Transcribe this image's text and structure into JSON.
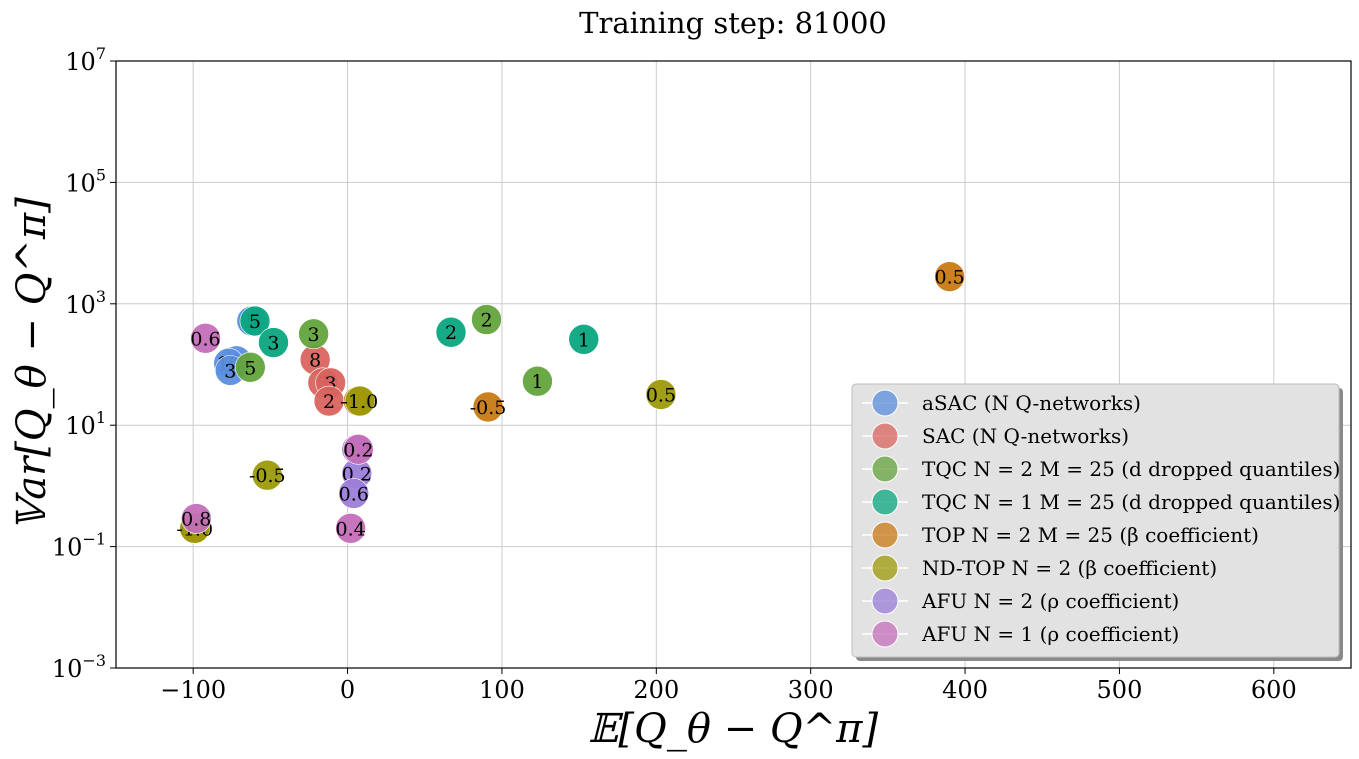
{
  "chart_data": {
    "type": "scatter",
    "title": "Training step: 81000",
    "xlabel": "𝔼[Q_θ − Q^π]",
    "ylabel": "𝕍ar[Q_θ − Q^π]",
    "xscale": "linear",
    "yscale": "log",
    "xlim": [
      -150,
      650
    ],
    "ylim": [
      0.001,
      10000000
    ],
    "xticks": [
      -100,
      0,
      100,
      200,
      300,
      400,
      500,
      600
    ],
    "xtick_labels": [
      "−100",
      "0",
      "100",
      "200",
      "300",
      "400",
      "500",
      "600"
    ],
    "yticks": [
      0.001,
      0.1,
      10,
      1000,
      100000,
      10000000
    ],
    "ytick_labels": [
      {
        "base": "10",
        "exp": "−3"
      },
      {
        "base": "10",
        "exp": "−1"
      },
      {
        "base": "10",
        "exp": "1"
      },
      {
        "base": "10",
        "exp": "3"
      },
      {
        "base": "10",
        "exp": "5"
      },
      {
        "base": "10",
        "exp": "7"
      }
    ],
    "grid": true,
    "legend_position": "lower-right",
    "series": [
      {
        "name": "aSAC (N Q-networks)",
        "color": "#5b8ede",
        "points": [
          {
            "x": -72,
            "y": 115,
            "label": "1"
          },
          {
            "x": -77,
            "y": 105,
            "label": "10"
          },
          {
            "x": -76,
            "y": 80,
            "label": "3"
          },
          {
            "x": -62,
            "y": 520,
            "label": "5"
          }
        ]
      },
      {
        "name": "SAC (N Q-networks)",
        "color": "#d9645f",
        "points": [
          {
            "x": -21,
            "y": 120,
            "label": "8"
          },
          {
            "x": -16,
            "y": 50,
            "label": "5"
          },
          {
            "x": -11,
            "y": 50,
            "label": "3"
          },
          {
            "x": -12,
            "y": 25,
            "label": "2"
          }
        ]
      },
      {
        "name": "TQC N = 2 M = 25 (d dropped quantiles)",
        "color": "#63a33c",
        "points": [
          {
            "x": 90,
            "y": 550,
            "label": "2"
          },
          {
            "x": -22,
            "y": 320,
            "label": "3"
          },
          {
            "x": -63,
            "y": 90,
            "label": "5"
          },
          {
            "x": 123,
            "y": 53,
            "label": "1"
          }
        ]
      },
      {
        "name": "TQC N = 1 M = 25 (d dropped quantiles)",
        "color": "#0aa67f",
        "points": [
          {
            "x": 67,
            "y": 340,
            "label": "2"
          },
          {
            "x": -60,
            "y": 520,
            "label": "5"
          },
          {
            "x": -48,
            "y": 230,
            "label": "3"
          },
          {
            "x": 153,
            "y": 260,
            "label": "1"
          }
        ]
      },
      {
        "name": "TOP N = 2 M = 25 (β coefficient)",
        "color": "#c97a14",
        "points": [
          {
            "x": 390,
            "y": 2800,
            "label": "0.5"
          },
          {
            "x": 91,
            "y": 20,
            "label": "-0.5"
          },
          {
            "x": 7,
            "y": 25,
            "label": "-1.0"
          },
          {
            "x": -99,
            "y": 0.2,
            "label": "0.0"
          }
        ]
      },
      {
        "name": "ND-TOP N = 2 (β coefficient)",
        "color": "#9c9a08",
        "points": [
          {
            "x": 203,
            "y": 32,
            "label": "0.5"
          },
          {
            "x": -52,
            "y": 1.5,
            "label": "-0.5"
          },
          {
            "x": 8,
            "y": 25,
            "label": "-1.0"
          },
          {
            "x": -99,
            "y": 0.2,
            "label": "-1.0"
          }
        ]
      },
      {
        "name": "AFU N = 2 (ρ coefficient)",
        "color": "#9b7ed8",
        "points": [
          {
            "x": 6,
            "y": 4,
            "label": "0.4"
          },
          {
            "x": 6,
            "y": 1.6,
            "label": "0.2"
          },
          {
            "x": 4,
            "y": 0.75,
            "label": "0.6"
          }
        ]
      },
      {
        "name": "AFU N = 1 (ρ coefficient)",
        "color": "#c46fb9",
        "points": [
          {
            "x": -92,
            "y": 270,
            "label": "0.6"
          },
          {
            "x": -98,
            "y": 0.29,
            "label": "0.8"
          },
          {
            "x": 7,
            "y": 4,
            "label": "0.2"
          },
          {
            "x": 2,
            "y": 0.2,
            "label": "0.4"
          }
        ]
      }
    ]
  }
}
